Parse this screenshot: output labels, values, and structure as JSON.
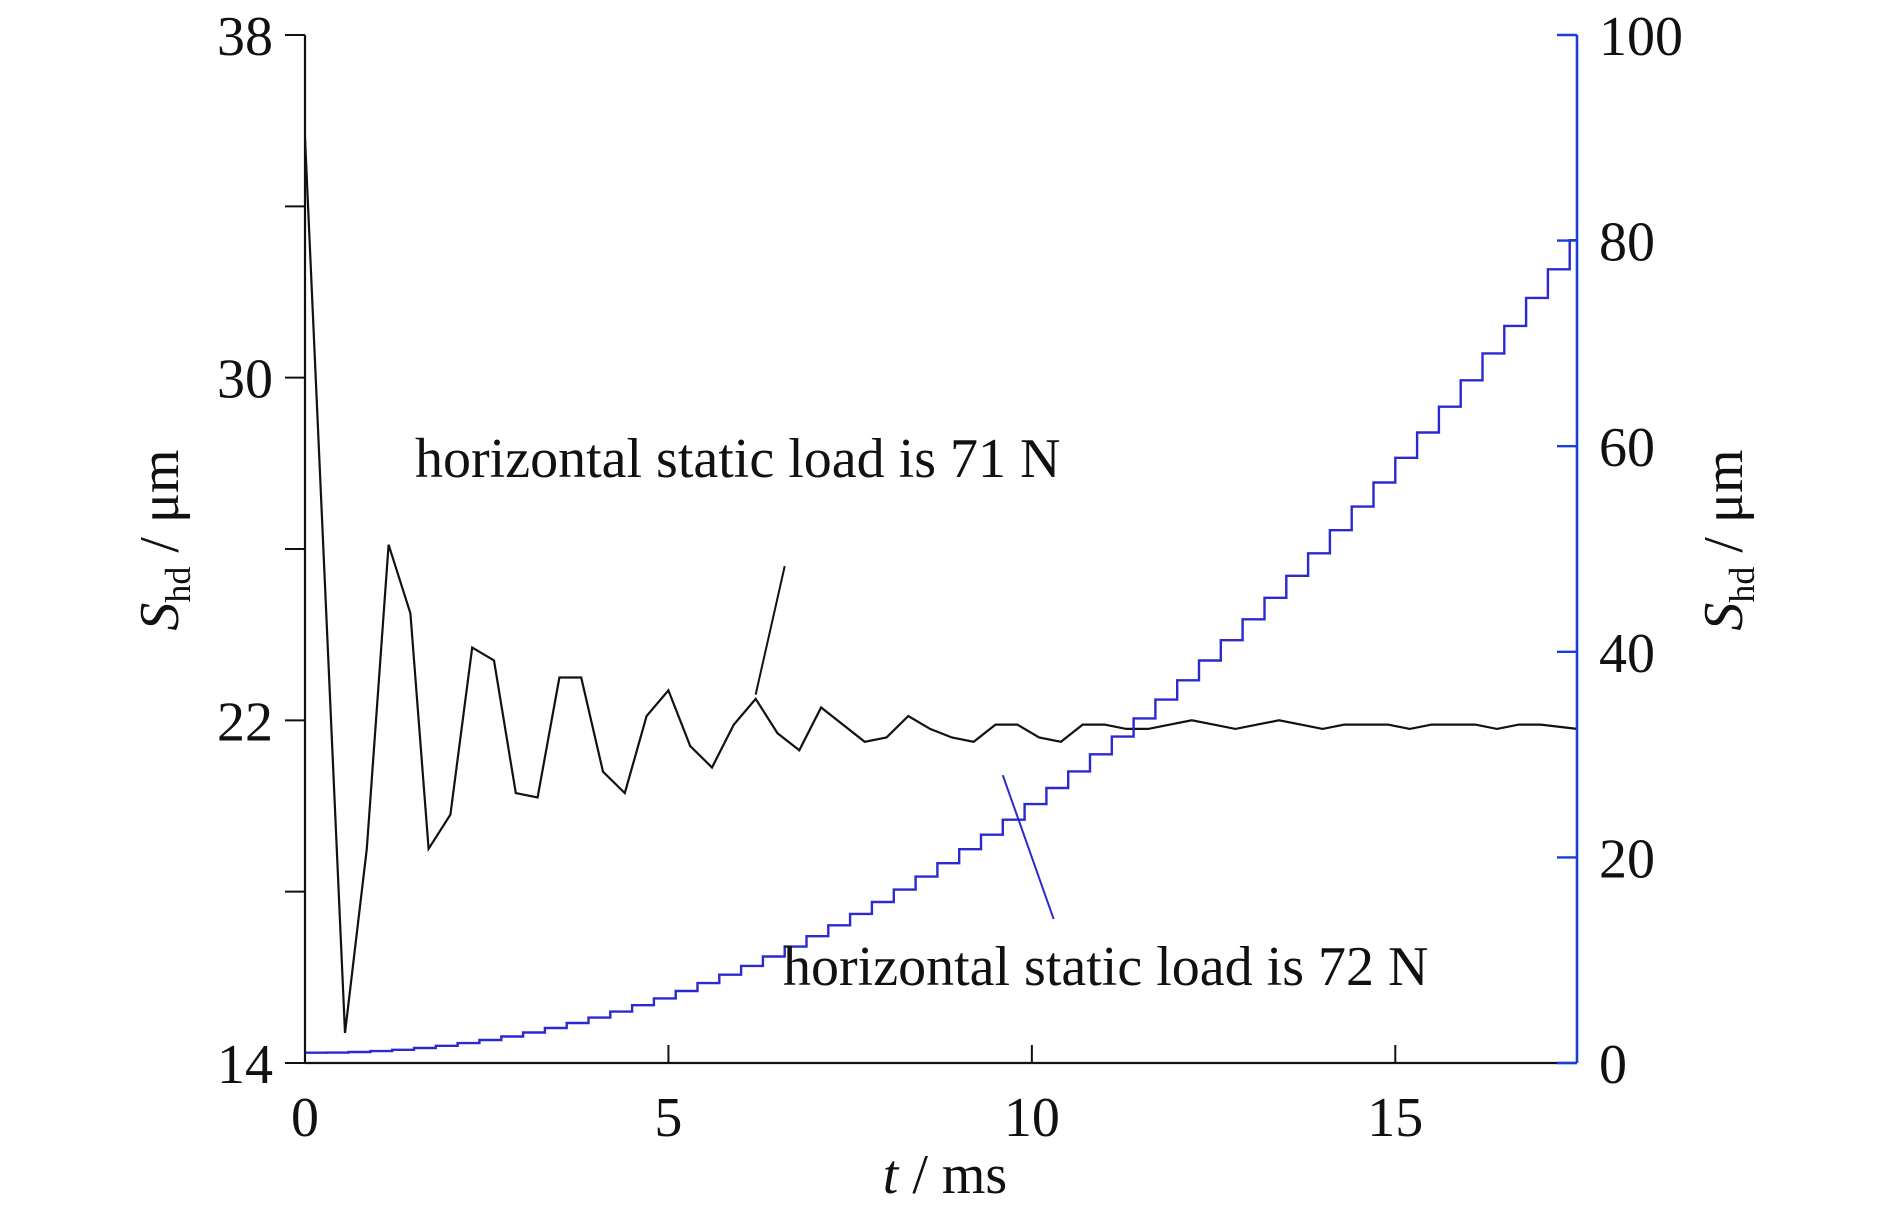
{
  "chart_data": {
    "type": "line",
    "xlabel": {
      "var": "t",
      "unit": " / ms"
    },
    "ylabel_left": {
      "var": "S",
      "sub": "hd",
      "unit": " / μm"
    },
    "ylabel_right": {
      "var": "S",
      "sub": "hd",
      "unit": " / μm"
    },
    "xlim": [
      0,
      17.5
    ],
    "ylim_left": [
      14,
      38
    ],
    "ylim_right": [
      0,
      100
    ],
    "x_ticks": [
      0,
      5,
      10,
      15
    ],
    "y_left_ticks": [
      14,
      18,
      22,
      26,
      30,
      34,
      38
    ],
    "y_left_tick_labels": [
      "14",
      "",
      "22",
      "",
      "30",
      "",
      "38"
    ],
    "y_right_ticks": [
      0,
      20,
      40,
      60,
      80,
      100
    ],
    "grid": false,
    "legend": "none",
    "colors": {
      "left_axis": "#111111",
      "right_axis": "#1a3fd6",
      "series_71": "#111111",
      "series_72": "#2a2ad0"
    },
    "series": [
      {
        "name": "horizontal static load is 71 N",
        "axis": "left",
        "style": "line",
        "x": [
          0,
          0.55,
          0.85,
          1.15,
          1.45,
          1.7,
          2.0,
          2.3,
          2.6,
          2.9,
          3.2,
          3.5,
          3.8,
          4.1,
          4.4,
          4.7,
          5.0,
          5.3,
          5.6,
          5.9,
          6.2,
          6.5,
          6.8,
          7.1,
          7.4,
          7.7,
          8.0,
          8.3,
          8.6,
          8.9,
          9.2,
          9.5,
          9.8,
          10.1,
          10.4,
          10.7,
          11.0,
          11.3,
          11.6,
          11.9,
          12.2,
          12.5,
          12.8,
          13.1,
          13.4,
          13.7,
          14.0,
          14.3,
          14.6,
          14.9,
          15.2,
          15.5,
          15.8,
          16.1,
          16.4,
          16.7,
          17.0,
          17.5
        ],
        "y": [
          35.6,
          14.7,
          19.0,
          26.1,
          24.5,
          19.0,
          19.8,
          23.7,
          23.4,
          20.3,
          20.2,
          23.0,
          23.0,
          20.8,
          20.3,
          22.1,
          22.7,
          21.4,
          20.9,
          21.9,
          22.5,
          21.7,
          21.3,
          22.3,
          21.9,
          21.5,
          21.6,
          22.1,
          21.8,
          21.6,
          21.5,
          21.9,
          21.9,
          21.6,
          21.5,
          21.9,
          21.9,
          21.8,
          21.8,
          21.9,
          22.0,
          21.9,
          21.8,
          21.9,
          22.0,
          21.9,
          21.8,
          21.9,
          21.9,
          21.9,
          21.8,
          21.9,
          21.9,
          21.9,
          21.8,
          21.9,
          21.9,
          21.8
        ]
      },
      {
        "name": "horizontal static load is 72 N",
        "axis": "right",
        "style": "step",
        "x_start": 0,
        "x_end": 17.5,
        "step_width": 0.3,
        "growth": {
          "y0": 1.0,
          "y_end": 81.0,
          "exponent": 2.1
        }
      }
    ],
    "annotations": [
      {
        "text": "horizontal static load is 71 N",
        "text_at": [
          3.1,
          27.9
        ],
        "anchor": "start",
        "leader_from": [
          11.6,
          25.6
        ],
        "leader_to": [
          12.6,
          21.0
        ]
      },
      {
        "text": "horizontal static load is 72 N",
        "text_at": [
          13.2,
          9.6
        ],
        "anchor": "start",
        "leader_from": [
          9.9,
          28.0
        ],
        "leader_to": [
          11.9,
          14.0
        ]
      }
    ]
  }
}
